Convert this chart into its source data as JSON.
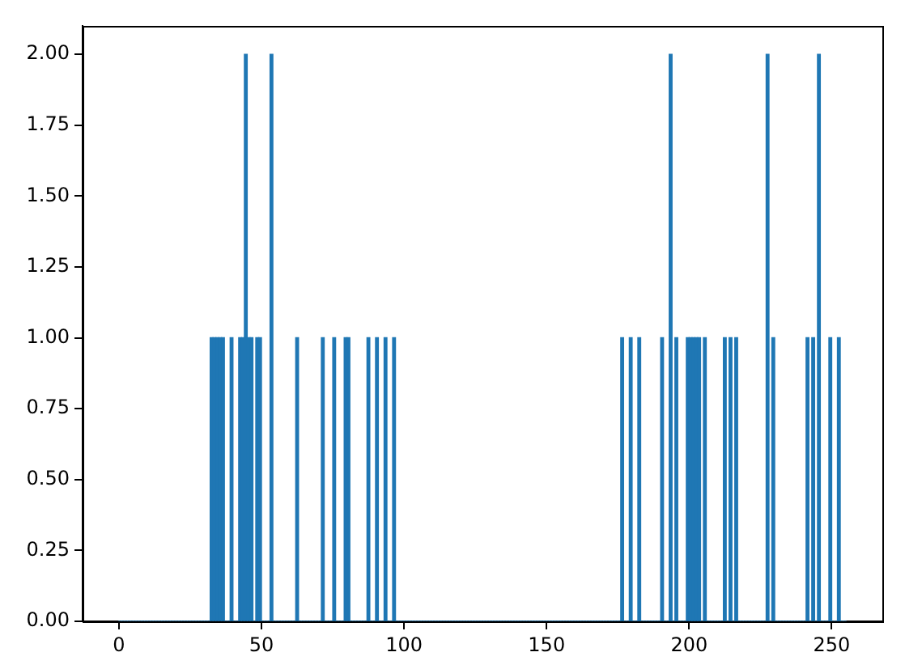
{
  "chart_data": {
    "type": "histogram",
    "color": "#1f77b4",
    "bins": [
      0,
      1,
      2,
      3,
      4,
      5,
      6,
      7,
      8,
      9,
      10,
      11,
      12,
      13,
      14,
      15,
      16,
      17,
      18,
      19,
      20,
      21,
      22,
      23,
      24,
      25,
      26,
      27,
      28,
      29,
      30,
      31,
      32,
      33,
      34,
      35,
      36,
      37,
      38,
      39,
      40,
      41,
      42,
      43,
      44,
      45,
      46,
      47,
      48,
      49,
      50,
      51,
      52,
      53,
      54,
      55,
      56,
      57,
      58,
      59,
      60,
      61,
      62,
      63,
      64,
      65,
      66,
      67,
      68,
      69,
      70,
      71,
      72,
      73,
      74,
      75,
      76,
      77,
      78,
      79,
      80,
      81,
      82,
      83,
      84,
      85,
      86,
      87,
      88,
      89,
      90,
      91,
      92,
      93,
      94,
      95,
      96,
      97,
      98,
      99,
      100,
      101,
      102,
      103,
      104,
      105,
      106,
      107,
      108,
      109,
      110,
      111,
      112,
      113,
      114,
      115,
      116,
      117,
      118,
      119,
      120,
      121,
      122,
      123,
      124,
      125,
      126,
      127,
      128,
      129,
      130,
      131,
      132,
      133,
      134,
      135,
      136,
      137,
      138,
      139,
      140,
      141,
      142,
      143,
      144,
      145,
      146,
      147,
      148,
      149,
      150,
      151,
      152,
      153,
      154,
      155,
      156,
      157,
      158,
      159,
      160,
      161,
      162,
      163,
      164,
      165,
      166,
      167,
      168,
      169,
      170,
      171,
      172,
      173,
      174,
      175,
      176,
      177,
      178,
      179,
      180,
      181,
      182,
      183,
      184,
      185,
      186,
      187,
      188,
      189,
      190,
      191,
      192,
      193,
      194,
      195,
      196,
      197,
      198,
      199,
      200,
      201,
      202,
      203,
      204,
      205,
      206,
      207,
      208,
      209,
      210,
      211,
      212,
      213,
      214,
      215,
      216,
      217,
      218,
      219,
      220,
      221,
      222,
      223,
      224,
      225,
      226,
      227,
      228,
      229,
      230,
      231,
      232,
      233,
      234,
      235,
      236,
      237,
      238,
      239,
      240,
      241,
      242,
      243,
      244,
      245,
      246,
      247,
      248,
      249,
      250,
      251,
      252,
      253,
      254,
      255
    ],
    "values": [
      0,
      0,
      0,
      0,
      0,
      0,
      0,
      0,
      0,
      0,
      0,
      0,
      0,
      0,
      0,
      0,
      0,
      0,
      0,
      0,
      0,
      0,
      0,
      0,
      0,
      0,
      0,
      0,
      0,
      0,
      0,
      0,
      1,
      1,
      1,
      1,
      1,
      0,
      0,
      1,
      0,
      0,
      1,
      1,
      2,
      1,
      1,
      0,
      1,
      1,
      0,
      0,
      0,
      2,
      0,
      0,
      0,
      0,
      0,
      0,
      0,
      0,
      1,
      0,
      0,
      0,
      0,
      0,
      0,
      0,
      0,
      1,
      0,
      0,
      0,
      1,
      0,
      0,
      0,
      1,
      1,
      0,
      0,
      0,
      0,
      0,
      0,
      1,
      0,
      0,
      1,
      0,
      0,
      1,
      0,
      0,
      1,
      0,
      0,
      0,
      0,
      0,
      0,
      0,
      0,
      0,
      0,
      0,
      0,
      0,
      0,
      0,
      0,
      0,
      0,
      0,
      0,
      0,
      0,
      0,
      0,
      0,
      0,
      0,
      0,
      0,
      0,
      0,
      0,
      0,
      0,
      0,
      0,
      0,
      0,
      0,
      0,
      0,
      0,
      0,
      0,
      0,
      0,
      0,
      0,
      0,
      0,
      0,
      0,
      0,
      0,
      0,
      0,
      0,
      0,
      0,
      0,
      0,
      0,
      0,
      0,
      0,
      0,
      0,
      0,
      0,
      0,
      0,
      0,
      0,
      0,
      0,
      0,
      0,
      0,
      0,
      1,
      0,
      0,
      1,
      0,
      0,
      1,
      0,
      0,
      0,
      0,
      0,
      0,
      0,
      1,
      0,
      0,
      2,
      0,
      1,
      0,
      0,
      0,
      1,
      1,
      1,
      1,
      1,
      0,
      1,
      0,
      0,
      0,
      0,
      0,
      0,
      1,
      0,
      1,
      0,
      1,
      0,
      0,
      0,
      0,
      0,
      0,
      0,
      0,
      0,
      0,
      2,
      0,
      1,
      0,
      0,
      0,
      0,
      0,
      0,
      0,
      0,
      0,
      0,
      0,
      1,
      0,
      1,
      0,
      2,
      0,
      0,
      0,
      1,
      0,
      0,
      1,
      0,
      0
    ],
    "xlim": [
      -12.75,
      267.75
    ],
    "xticks": [
      0,
      50,
      100,
      150,
      200,
      250
    ],
    "ylim": [
      0,
      2.1
    ],
    "yticks": [
      {
        "value": 0,
        "label": "0.00"
      },
      {
        "value": 0.25,
        "label": "0.25"
      },
      {
        "value": 0.5,
        "label": "0.50"
      },
      {
        "value": 0.75,
        "label": "0.75"
      },
      {
        "value": 1,
        "label": "1.00"
      },
      {
        "value": 1.25,
        "label": "1.25"
      },
      {
        "value": 1.5,
        "label": "1.50"
      },
      {
        "value": 1.75,
        "label": "1.75"
      },
      {
        "value": 2,
        "label": "2.00"
      }
    ],
    "grid": false,
    "legend": false
  }
}
